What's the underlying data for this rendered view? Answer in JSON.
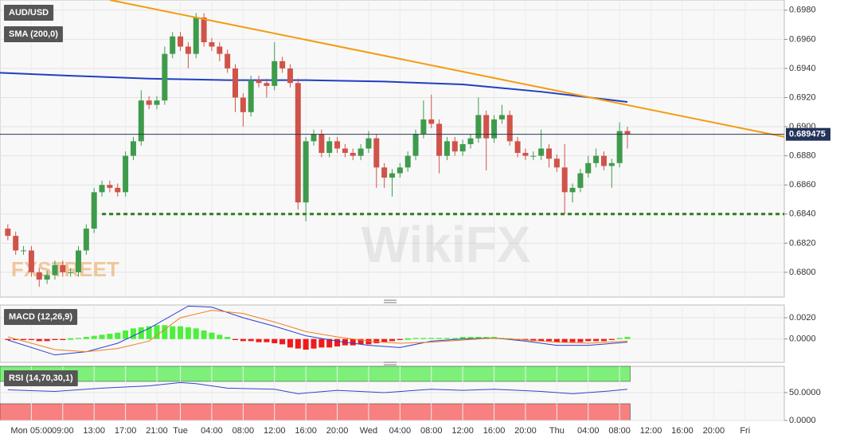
{
  "chart_data": [
    {
      "type": "candlestick",
      "title": "AUD/USD",
      "x": [
        2,
        3,
        4,
        5,
        6,
        7,
        8,
        9,
        10,
        11,
        12,
        13,
        14,
        15,
        16,
        17,
        18,
        19,
        20,
        21,
        22,
        23,
        24,
        25,
        26,
        27,
        28,
        29,
        30,
        31,
        32,
        33,
        34,
        35,
        36,
        37,
        38,
        39,
        40,
        41,
        42,
        43,
        44,
        45,
        46,
        47,
        48,
        49,
        50,
        51,
        52,
        53,
        54,
        55,
        56,
        57,
        58,
        59,
        60,
        61,
        62,
        63,
        64,
        65,
        66,
        67,
        68,
        69,
        70,
        71,
        72,
        73,
        74,
        75,
        76,
        77,
        78,
        79,
        80,
        81
      ],
      "open": [
        0.683,
        0.6825,
        0.6815,
        0.6815,
        0.68,
        0.6795,
        0.6798,
        0.6805,
        0.68,
        0.68,
        0.6815,
        0.683,
        0.6855,
        0.686,
        0.6858,
        0.6855,
        0.688,
        0.689,
        0.6918,
        0.6915,
        0.6918,
        0.695,
        0.6962,
        0.6955,
        0.695,
        0.6975,
        0.6958,
        0.6955,
        0.695,
        0.694,
        0.692,
        0.691,
        0.6932,
        0.693,
        0.6928,
        0.6945,
        0.694,
        0.693,
        0.6848,
        0.689,
        0.6895,
        0.6882,
        0.689,
        0.6885,
        0.6882,
        0.688,
        0.6885,
        0.6892,
        0.6872,
        0.6865,
        0.6868,
        0.6872,
        0.688,
        0.6895,
        0.6905,
        0.6902,
        0.688,
        0.689,
        0.6883,
        0.6888,
        0.6892,
        0.6908,
        0.6892,
        0.6905,
        0.6908,
        0.689,
        0.6882,
        0.688,
        0.688,
        0.6885,
        0.6878,
        0.6872,
        0.6855,
        0.6858,
        0.6868,
        0.6875,
        0.688,
        0.6873,
        0.6875,
        0.6897
      ],
      "high": [
        0.6833,
        0.6828,
        0.6818,
        0.6818,
        0.6803,
        0.6801,
        0.6808,
        0.6808,
        0.6803,
        0.6818,
        0.6833,
        0.6858,
        0.6863,
        0.6863,
        0.6861,
        0.6883,
        0.6893,
        0.6925,
        0.6921,
        0.6921,
        0.6955,
        0.6965,
        0.6965,
        0.6958,
        0.6978,
        0.6978,
        0.6961,
        0.6958,
        0.6953,
        0.6943,
        0.6923,
        0.6935,
        0.6935,
        0.6933,
        0.6958,
        0.6948,
        0.6943,
        0.6933,
        0.6893,
        0.6898,
        0.6898,
        0.6893,
        0.6893,
        0.6888,
        0.6885,
        0.6888,
        0.6897,
        0.6895,
        0.6875,
        0.6871,
        0.6875,
        0.6883,
        0.6898,
        0.6918,
        0.6922,
        0.6905,
        0.6893,
        0.6893,
        0.6891,
        0.6895,
        0.692,
        0.6911,
        0.6908,
        0.6915,
        0.6911,
        0.6893,
        0.6885,
        0.6883,
        0.6898,
        0.6888,
        0.6881,
        0.6888,
        0.6861,
        0.6871,
        0.688,
        0.6885,
        0.6883,
        0.6878,
        0.6903,
        0.69
      ],
      "low": [
        0.6822,
        0.6812,
        0.6812,
        0.6797,
        0.679,
        0.6792,
        0.6795,
        0.6797,
        0.6797,
        0.6797,
        0.6812,
        0.6827,
        0.6852,
        0.6855,
        0.6852,
        0.6852,
        0.6877,
        0.6887,
        0.6912,
        0.6912,
        0.6915,
        0.6947,
        0.6952,
        0.694,
        0.6947,
        0.6955,
        0.6952,
        0.6945,
        0.6937,
        0.691,
        0.69,
        0.6907,
        0.6927,
        0.692,
        0.6925,
        0.6937,
        0.6927,
        0.6843,
        0.6835,
        0.6887,
        0.6879,
        0.6879,
        0.6882,
        0.6879,
        0.6877,
        0.6877,
        0.6882,
        0.6858,
        0.6858,
        0.6852,
        0.6865,
        0.6869,
        0.6877,
        0.6892,
        0.6899,
        0.6868,
        0.6877,
        0.688,
        0.688,
        0.6885,
        0.6889,
        0.687,
        0.6889,
        0.6902,
        0.6887,
        0.6879,
        0.6877,
        0.6877,
        0.6877,
        0.6872,
        0.6869,
        0.684,
        0.6848,
        0.6855,
        0.6865,
        0.6872,
        0.687,
        0.6858,
        0.6872,
        0.6885
      ],
      "close": [
        0.6825,
        0.6815,
        0.6815,
        0.68,
        0.6795,
        0.6798,
        0.6805,
        0.68,
        0.68,
        0.6815,
        0.683,
        0.6855,
        0.686,
        0.6858,
        0.6855,
        0.688,
        0.689,
        0.6918,
        0.6915,
        0.6918,
        0.695,
        0.6962,
        0.6955,
        0.695,
        0.6975,
        0.6958,
        0.6955,
        0.695,
        0.694,
        0.692,
        0.691,
        0.6932,
        0.693,
        0.6928,
        0.6945,
        0.694,
        0.693,
        0.6848,
        0.689,
        0.6895,
        0.6882,
        0.689,
        0.6885,
        0.6882,
        0.688,
        0.6885,
        0.6892,
        0.6872,
        0.6865,
        0.6868,
        0.6872,
        0.688,
        0.6895,
        0.6905,
        0.6902,
        0.688,
        0.689,
        0.6883,
        0.6888,
        0.6892,
        0.6908,
        0.6892,
        0.6905,
        0.6908,
        0.689,
        0.6882,
        0.688,
        0.688,
        0.6885,
        0.6878,
        0.6872,
        0.6855,
        0.6858,
        0.6868,
        0.6875,
        0.688,
        0.6873,
        0.6875,
        0.6897,
        0.6895
      ],
      "up_color": "#3f9b4c",
      "down_color": "#d0534a",
      "overlays": [
        {
          "name": "SMA (200,0)",
          "color": "#1f3fc4",
          "x": [
            1,
            10,
            20,
            30,
            40,
            50,
            60,
            70,
            81
          ],
          "values": [
            0.6937,
            0.6935,
            0.6933,
            0.6932,
            0.6932,
            0.6931,
            0.6929,
            0.6924,
            0.6917
          ]
        }
      ],
      "trendline": {
        "color": "#f39c12",
        "x": [
          15,
          101
        ],
        "values": [
          0.6987,
          0.6893
        ]
      },
      "support": {
        "color": "#2e7d1e",
        "x": [
          14,
          101
        ],
        "values": [
          0.684,
          0.684
        ]
      },
      "last_price": 0.689475,
      "xlim": [
        1,
        101
      ],
      "ylim": [
        0.6783,
        0.6987
      ],
      "yticks": [
        {
          "value": 0.698,
          "label": "0.6980"
        },
        {
          "value": 0.696,
          "label": "0.6960"
        },
        {
          "value": 0.694,
          "label": "0.6940"
        },
        {
          "value": 0.692,
          "label": "0.6920"
        },
        {
          "value": 0.69,
          "label": "0.6900"
        },
        {
          "value": 0.688,
          "label": "0.6880"
        },
        {
          "value": 0.686,
          "label": "0.6860"
        },
        {
          "value": 0.684,
          "label": "0.6840"
        },
        {
          "value": 0.682,
          "label": "0.6820"
        },
        {
          "value": 0.68,
          "label": "0.6800"
        }
      ],
      "xticks": [
        {
          "value": 5,
          "label": "Mon 05:00"
        },
        {
          "value": 9,
          "label": "09:00"
        },
        {
          "value": 13,
          "label": "13:00"
        },
        {
          "value": 17,
          "label": "17:00"
        },
        {
          "value": 21,
          "label": "21:00"
        },
        {
          "value": 24,
          "label": "Tue"
        },
        {
          "value": 28,
          "label": "04:00"
        },
        {
          "value": 32,
          "label": "08:00"
        },
        {
          "value": 36,
          "label": "12:00"
        },
        {
          "value": 40,
          "label": "16:00"
        },
        {
          "value": 44,
          "label": "20:00"
        },
        {
          "value": 48,
          "label": "Wed"
        },
        {
          "value": 52,
          "label": "04:00"
        },
        {
          "value": 56,
          "label": "08:00"
        },
        {
          "value": 60,
          "label": "12:00"
        },
        {
          "value": 64,
          "label": "16:00"
        },
        {
          "value": 68,
          "label": "20:00"
        },
        {
          "value": 72,
          "label": "Thu"
        },
        {
          "value": 76,
          "label": "04:00"
        },
        {
          "value": 80,
          "label": "08:00"
        },
        {
          "value": 84,
          "label": "12:00"
        },
        {
          "value": 88,
          "label": "16:00"
        },
        {
          "value": 92,
          "label": "20:00"
        },
        {
          "value": 96,
          "label": "Fri"
        }
      ],
      "watermarks": [
        "WikiFX",
        "FXSTREET"
      ]
    },
    {
      "type": "macd",
      "title": "MACD (12,26,9)",
      "histogram": {
        "up_color": "#4cf03c",
        "down_color": "#f01a1a",
        "x": [
          2,
          3,
          4,
          5,
          6,
          7,
          8,
          9,
          10,
          11,
          12,
          13,
          14,
          15,
          16,
          17,
          18,
          19,
          20,
          21,
          22,
          23,
          24,
          25,
          26,
          27,
          28,
          29,
          30,
          31,
          32,
          33,
          34,
          35,
          36,
          37,
          38,
          39,
          40,
          41,
          42,
          43,
          44,
          45,
          46,
          47,
          48,
          49,
          50,
          51,
          52,
          53,
          54,
          55,
          56,
          57,
          58,
          59,
          60,
          61,
          62,
          63,
          64,
          65,
          66,
          67,
          68,
          69,
          70,
          71,
          72,
          73,
          74,
          75,
          76,
          77,
          78,
          79,
          80,
          81
        ],
        "values": [
          -0.0001,
          -0.0001,
          -0.0001,
          -0.0001,
          -0.0002,
          -0.0002,
          -0.0001,
          -0.0001,
          0,
          0.0001,
          0.0002,
          0.0003,
          0.0004,
          0.0005,
          0.0006,
          0.0008,
          0.001,
          0.0011,
          0.0012,
          0.0013,
          0.0013,
          0.0012,
          0.0012,
          0.0011,
          0.001,
          0.0008,
          0.0006,
          0.0004,
          0.0002,
          -0.0001,
          -0.0002,
          -0.0002,
          -0.0003,
          -0.0003,
          -0.0004,
          -0.0005,
          -0.0008,
          -0.0009,
          -0.001,
          -0.0009,
          -0.0008,
          -0.0008,
          -0.0007,
          -0.0006,
          -0.0006,
          -0.0005,
          -0.0005,
          -0.0004,
          -0.0003,
          -0.0002,
          -0.0001,
          0,
          0.0001,
          0.0001,
          0.0001,
          0.0001,
          0.0001,
          0.0001,
          0.0002,
          0.0002,
          0.0002,
          0.0002,
          0.0002,
          0.0001,
          0,
          -0.0001,
          -0.0001,
          -0.0002,
          -0.0002,
          -0.0002,
          -0.0003,
          -0.0003,
          -0.0003,
          -0.0003,
          -0.0002,
          -0.0002,
          -0.0002,
          -0.0001,
          0.0001,
          0.0002
        ]
      },
      "series": [
        {
          "color": "#2b3fd0",
          "x": [
            2,
            8,
            12,
            16,
            20,
            25,
            28,
            32,
            36,
            40,
            44,
            48,
            52,
            56,
            60,
            64,
            68,
            72,
            76,
            81
          ],
          "values": [
            -0.0001,
            -0.0015,
            -0.0012,
            -0.0004,
            0.001,
            0.0031,
            0.003,
            0.002,
            0.0012,
            0.0003,
            -0.0002,
            -0.0006,
            -0.0008,
            -0.0002,
            0,
            0.0001,
            -0.0002,
            -0.0006,
            -0.0006,
            -0.0003
          ]
        },
        {
          "color": "#f07f20",
          "x": [
            2,
            8,
            12,
            16,
            20,
            24,
            28,
            32,
            36,
            40,
            44,
            48,
            52,
            56,
            60,
            64,
            68,
            72,
            76,
            81
          ],
          "values": [
            0.0002,
            -0.001,
            -0.0012,
            -0.0009,
            -0.0002,
            0.002,
            0.0027,
            0.0024,
            0.0016,
            0.0007,
            0.0002,
            -0.0002,
            -0.0004,
            -0.0003,
            -0.0001,
            0.0001,
            -0.0001,
            -0.0003,
            -0.0004,
            -0.0002
          ]
        }
      ],
      "ylim": [
        -0.0022,
        0.0032
      ],
      "yticks": [
        {
          "value": 0.002,
          "label": "0.0020"
        },
        {
          "value": 0,
          "label": "0.0000"
        }
      ]
    },
    {
      "type": "rsi",
      "title": "RSI (14,70,30,1)",
      "series": [
        {
          "color": "#3344cc",
          "x": [
            2,
            8,
            14,
            20,
            24,
            26,
            30,
            36,
            39,
            44,
            50,
            56,
            60,
            64,
            70,
            74,
            78,
            81
          ],
          "values": [
            55,
            52,
            58,
            62,
            68,
            66,
            58,
            56,
            48,
            54,
            50,
            56,
            54,
            56,
            52,
            48,
            52,
            56
          ]
        }
      ],
      "overbought": 70,
      "oversold": 30,
      "overbought_color": "#7ef07a",
      "oversold_color": "#f78080",
      "ylim": [
        0,
        97
      ],
      "yticks": [
        {
          "value": 50,
          "label": "50.0000"
        },
        {
          "value": 0,
          "label": "0.0000"
        }
      ]
    }
  ]
}
